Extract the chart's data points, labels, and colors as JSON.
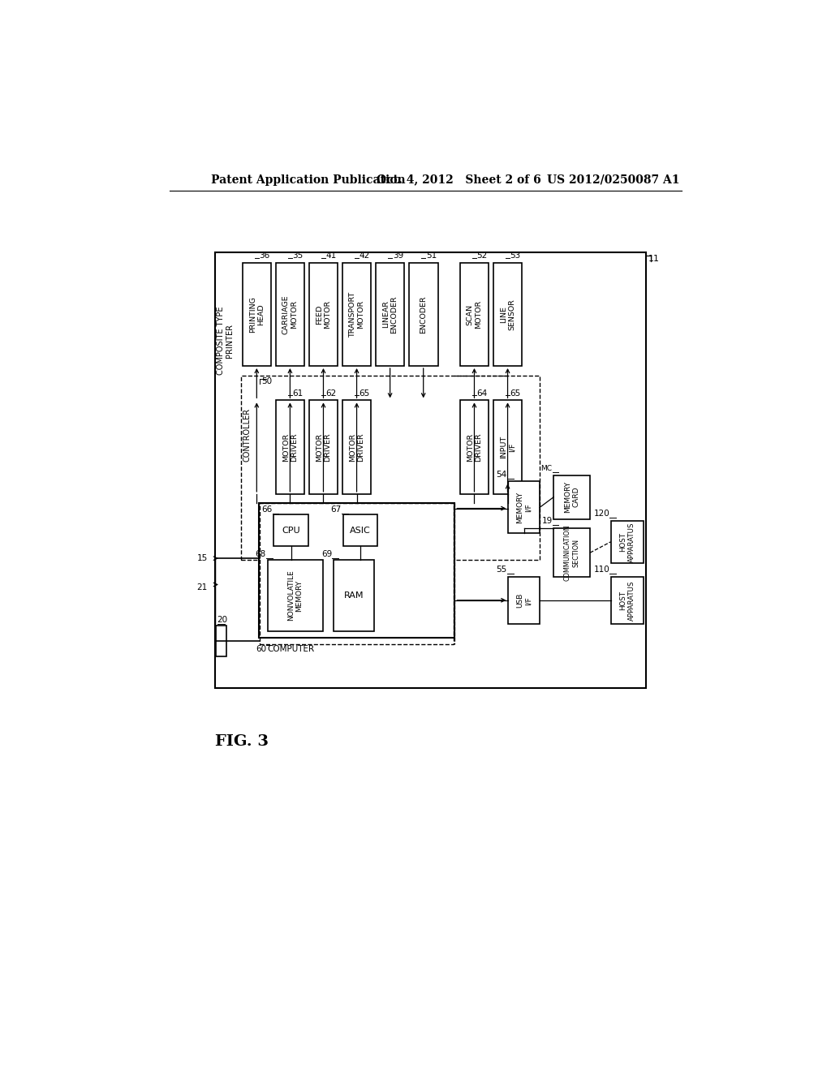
{
  "header_left": "Patent Application Publication",
  "header_mid": "Oct. 4, 2012   Sheet 2 of 6",
  "header_right": "US 2012/0250087 A1",
  "fig_label": "FIG. 3",
  "bg_color": "#ffffff",
  "lc": "#000000"
}
